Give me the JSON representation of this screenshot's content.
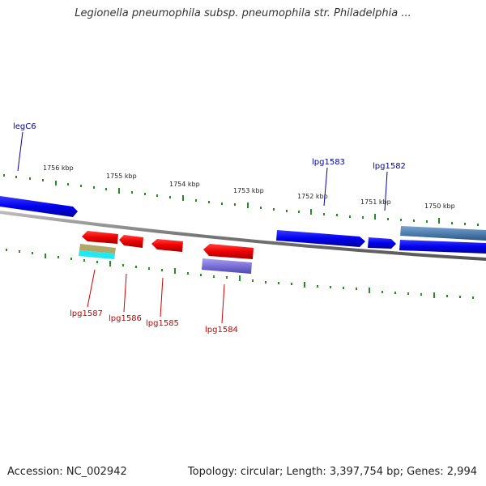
{
  "header": {
    "title": "Legionella pneumophila subsp. pneumophila str. Philadelphia ..."
  },
  "footer": {
    "accession": "Accession: NC_002942",
    "summary": "Topology: circular; Length: 3,397,754 bp; Genes: 2,994"
  },
  "scale": {
    "ticks": [
      "1756 kbp",
      "1755 kbp",
      "1754 kbp",
      "1753 kbp",
      "1752 kbp",
      "1751 kbp",
      "1750 kbp"
    ]
  },
  "genes": {
    "top": [
      "legC6",
      "lpg1583",
      "lpg1582"
    ],
    "bottom": [
      "lpg1587",
      "lpg1586",
      "lpg1585",
      "lpg1584"
    ]
  },
  "colors": {
    "backbone": "#888888",
    "forward_gene": "#0000ee",
    "reverse_gene": "#ee0000",
    "tick_mark": "#2a8a2a",
    "label_blue": "#0000aa",
    "label_red": "#cc0000"
  }
}
